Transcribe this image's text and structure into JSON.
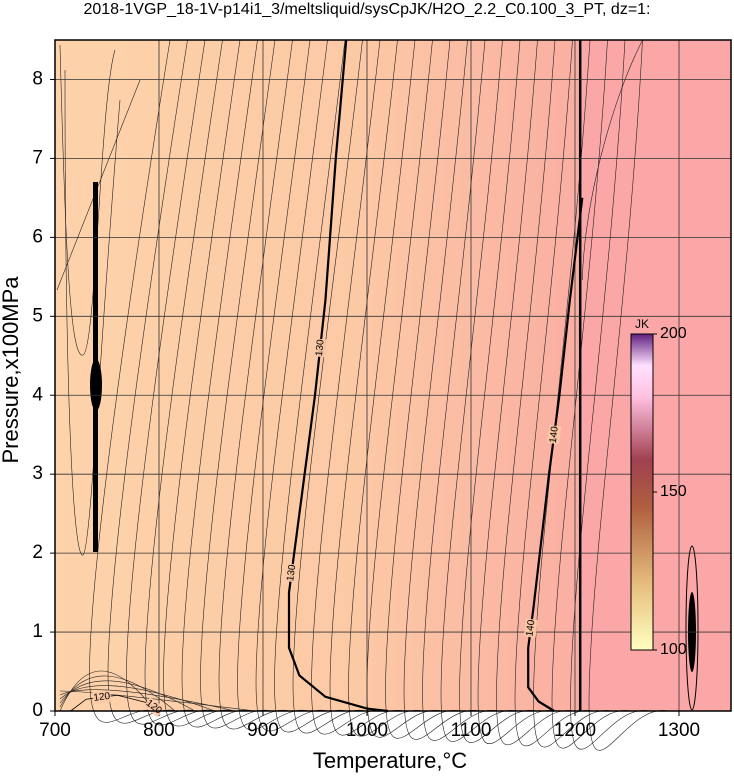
{
  "chart_data": {
    "type": "contour",
    "title": "2018-1VGP_18-1V-p14i1_3/meltsliquid/sysCpJK/H2O_2.2_C0.100_3_PT, dz=1:",
    "x_label": "Temperature,°C",
    "y_label": "Pressure,x100MPa",
    "xlim": [
      700,
      1350
    ],
    "ylim": [
      0,
      8.5
    ],
    "xticks": [
      700,
      800,
      900,
      1000,
      1100,
      1200,
      1300
    ],
    "yticks": [
      0,
      1,
      2,
      3,
      4,
      5,
      6,
      7,
      8
    ],
    "grid": true,
    "contours": [
      {
        "level": 130,
        "x": [
          980,
          970,
          960,
          950,
          940,
          930,
          925,
          925,
          935,
          960,
          1000,
          1020
        ],
        "y": [
          8.5,
          7,
          5.2,
          4,
          3,
          2,
          1.5,
          0.8,
          0.45,
          0.18,
          0.03,
          0
        ]
      },
      {
        "level": 140,
        "x": [
          1207,
          1195,
          1185,
          1175,
          1168,
          1160,
          1155,
          1155,
          1165,
          1180
        ],
        "y": [
          6.5,
          5.2,
          4,
          3,
          2.2,
          1.3,
          0.8,
          0.3,
          0.12,
          0
        ]
      },
      {
        "level": 120,
        "x": [
          715,
          730,
          760,
          790,
          800
        ],
        "y": [
          0,
          0.15,
          0.2,
          0.1,
          0
        ]
      }
    ],
    "colorbar": {
      "label": "JK",
      "clim": [
        100,
        200
      ],
      "ticks": [
        100,
        150,
        200
      ]
    }
  }
}
